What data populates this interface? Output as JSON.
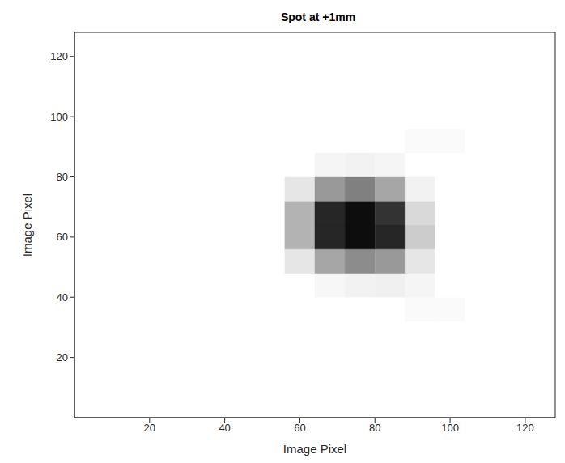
{
  "chart_data": {
    "type": "heatmap",
    "title": "Spot at +1mm",
    "x_label": "Image Pixel",
    "y_label": "Image Pixel",
    "xlim": [
      0,
      128
    ],
    "ylim": [
      0,
      128
    ],
    "xticks": [
      20,
      40,
      60,
      80,
      100,
      120
    ],
    "yticks": [
      20,
      40,
      60,
      80,
      100,
      120
    ],
    "grid": false,
    "color": "gray",
    "zlim": [
      0,
      1
    ],
    "x_bins": [
      0,
      8,
      16,
      24,
      32,
      40,
      48,
      56,
      64,
      72,
      80,
      88,
      96,
      104,
      112,
      120,
      128
    ],
    "y_bins": [
      0,
      8,
      16,
      24,
      32,
      40,
      48,
      56,
      64,
      72,
      80,
      88,
      96,
      104,
      112,
      120,
      128
    ],
    "cells": [
      [
        0,
        0,
        0,
        0,
        0,
        0,
        0,
        0,
        0,
        0,
        0,
        0,
        0,
        0,
        0,
        0
      ],
      [
        0,
        0,
        0,
        0,
        0,
        0,
        0,
        0,
        0,
        0,
        0,
        0,
        0,
        0,
        0,
        0
      ],
      [
        0,
        0,
        0,
        0,
        0,
        0,
        0,
        0,
        0,
        0,
        0,
        0,
        0,
        0,
        0,
        0
      ],
      [
        0,
        0,
        0,
        0,
        0,
        0,
        0,
        0,
        0,
        0,
        0,
        0,
        0,
        0,
        0,
        0
      ],
      [
        0,
        0,
        0,
        0,
        0,
        0,
        0,
        0,
        0,
        0,
        0,
        0.02,
        0.02,
        0,
        0,
        0
      ],
      [
        0,
        0,
        0,
        0,
        0,
        0,
        0,
        0,
        0.03,
        0.05,
        0.06,
        0.04,
        0,
        0,
        0,
        0
      ],
      [
        0,
        0,
        0,
        0,
        0,
        0,
        0,
        0.1,
        0.35,
        0.45,
        0.4,
        0.1,
        0,
        0,
        0,
        0
      ],
      [
        0,
        0,
        0,
        0,
        0,
        0,
        0,
        0.3,
        0.85,
        0.95,
        0.85,
        0.2,
        0,
        0,
        0,
        0
      ],
      [
        0,
        0,
        0,
        0,
        0,
        0,
        0,
        0.3,
        0.85,
        0.95,
        0.8,
        0.15,
        0,
        0,
        0,
        0
      ],
      [
        0,
        0,
        0,
        0,
        0,
        0,
        0,
        0.1,
        0.4,
        0.5,
        0.35,
        0.05,
        0,
        0,
        0,
        0
      ],
      [
        0,
        0,
        0,
        0,
        0,
        0,
        0,
        0,
        0.04,
        0.05,
        0.04,
        0,
        0,
        0,
        0,
        0
      ],
      [
        0,
        0,
        0,
        0,
        0,
        0,
        0,
        0,
        0,
        0,
        0,
        0.02,
        0.02,
        0,
        0,
        0
      ],
      [
        0,
        0,
        0,
        0,
        0,
        0,
        0,
        0,
        0,
        0,
        0,
        0,
        0,
        0,
        0,
        0
      ],
      [
        0,
        0,
        0,
        0,
        0,
        0,
        0,
        0,
        0,
        0,
        0,
        0,
        0,
        0,
        0,
        0
      ],
      [
        0,
        0,
        0,
        0,
        0,
        0,
        0,
        0,
        0,
        0,
        0,
        0,
        0,
        0,
        0,
        0
      ],
      [
        0,
        0,
        0,
        0,
        0,
        0,
        0,
        0,
        0,
        0,
        0,
        0,
        0,
        0,
        0,
        0
      ]
    ]
  }
}
